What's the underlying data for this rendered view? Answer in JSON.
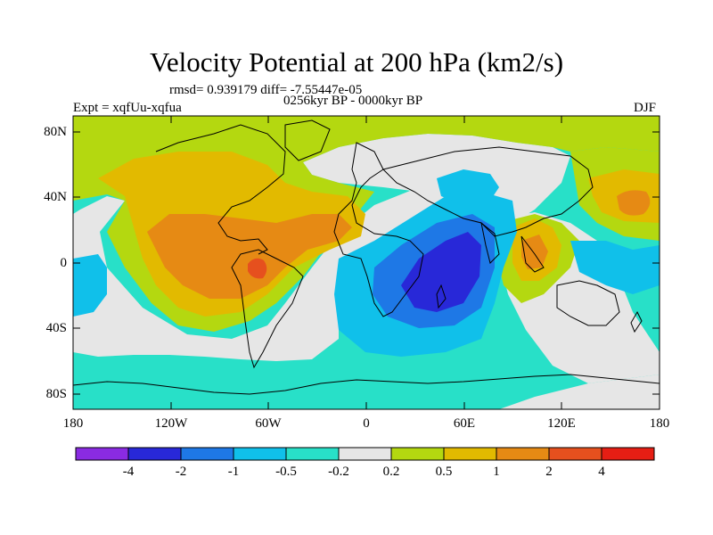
{
  "title": "Velocity Potential at 200 hPa (km2/s)",
  "stats": "rmsd= 0.939179 diff= -7.55447e-05",
  "experiment": "Expt = xqfUu-xqfua",
  "period": "0256kyr BP - 0000kyr BP",
  "season": "DJF",
  "y_ticks": [
    "80N",
    "40N",
    "0",
    "40S",
    "80S"
  ],
  "x_ticks": [
    "180",
    "120W",
    "60W",
    "0",
    "60E",
    "120E",
    "180"
  ],
  "colorbar": {
    "colors": [
      "#8a2be2",
      "#2828d8",
      "#1e78e6",
      "#10c0ea",
      "#28e0c8",
      "#e6e6e6",
      "#b4d810",
      "#e2ba00",
      "#e68a14",
      "#e6501e",
      "#e61e14"
    ],
    "labels": [
      "-4",
      "-2",
      "-1",
      "-0.5",
      "-0.2",
      "0.2",
      "0.5",
      "1",
      "2",
      "4"
    ]
  },
  "map_colors": {
    "background": "#28e0c8",
    "pos_02": "#b4d810",
    "pos_05": "#e2ba00",
    "pos_1": "#e68a14",
    "pos_2": "#e6501e",
    "neutral": "#e6e6e6",
    "neg_02": "#28e0c8",
    "neg_05": "#10c0ea",
    "neg_1": "#1e78e6",
    "neg_2": "#2828d8"
  }
}
